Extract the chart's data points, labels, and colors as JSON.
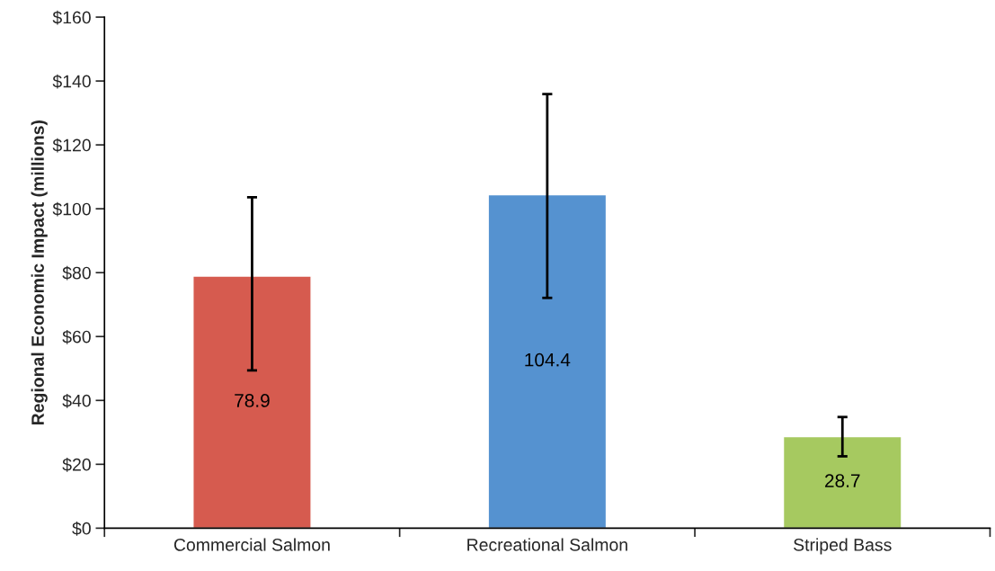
{
  "chart_data": {
    "type": "bar",
    "ylabel": "Regional Economic Impact (millions)",
    "categories": [
      "Commercial Salmon",
      "Recreational Salmon",
      "Striped Bass"
    ],
    "values": [
      78.9,
      104.4,
      28.7
    ],
    "colors": [
      "#d65b4f",
      "#5592d0",
      "#a6c960"
    ],
    "errors": [
      [
        49.4,
        103.6
      ],
      [
        72.1,
        135.9
      ],
      [
        22.5,
        34.8
      ]
    ],
    "data_labels": true,
    "ylim": [
      0,
      160
    ],
    "yticks": [
      {
        "value": 0,
        "label": "$0"
      },
      {
        "value": 20,
        "label": "$20"
      },
      {
        "value": 40,
        "label": "$40"
      },
      {
        "value": 60,
        "label": "$60"
      },
      {
        "value": 80,
        "label": "$80"
      },
      {
        "value": 100,
        "label": "$100"
      },
      {
        "value": 120,
        "label": "$120"
      },
      {
        "value": 140,
        "label": "$140"
      },
      {
        "value": 160,
        "label": "$160"
      }
    ],
    "grid": false,
    "legend": false
  }
}
